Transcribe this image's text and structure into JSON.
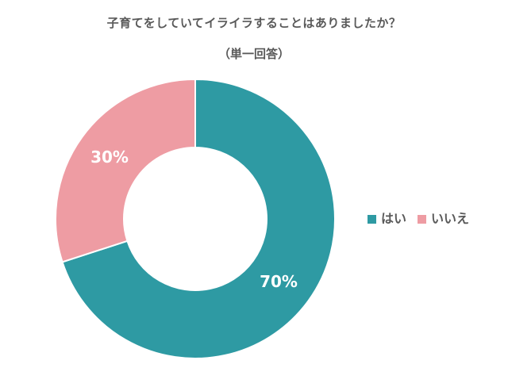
{
  "header": {
    "title": "子育てをしていてイライラすることはありましたか？",
    "subtitle": "（単一回答）"
  },
  "legend": {
    "items": [
      {
        "label": "はい",
        "color": "#2e9aa3"
      },
      {
        "label": "いいえ",
        "color": "#ee9ca3"
      }
    ]
  },
  "slices": [
    {
      "label": "70%",
      "color": "#2e9aa3"
    },
    {
      "label": "30%",
      "color": "#ee9ca3"
    }
  ],
  "chart_data": {
    "type": "pie",
    "variant": "donut",
    "title": "子育てをしていてイライラすることはありましたか？",
    "subtitle": "（単一回答）",
    "categories": [
      "はい",
      "いいえ"
    ],
    "values": [
      70,
      30
    ],
    "unit": "%",
    "data_labels": [
      "70%",
      "30%"
    ],
    "colors": [
      "#2e9aa3",
      "#ee9ca3"
    ],
    "start_angle": "12 o'clock, clockwise",
    "legend_position": "right"
  }
}
